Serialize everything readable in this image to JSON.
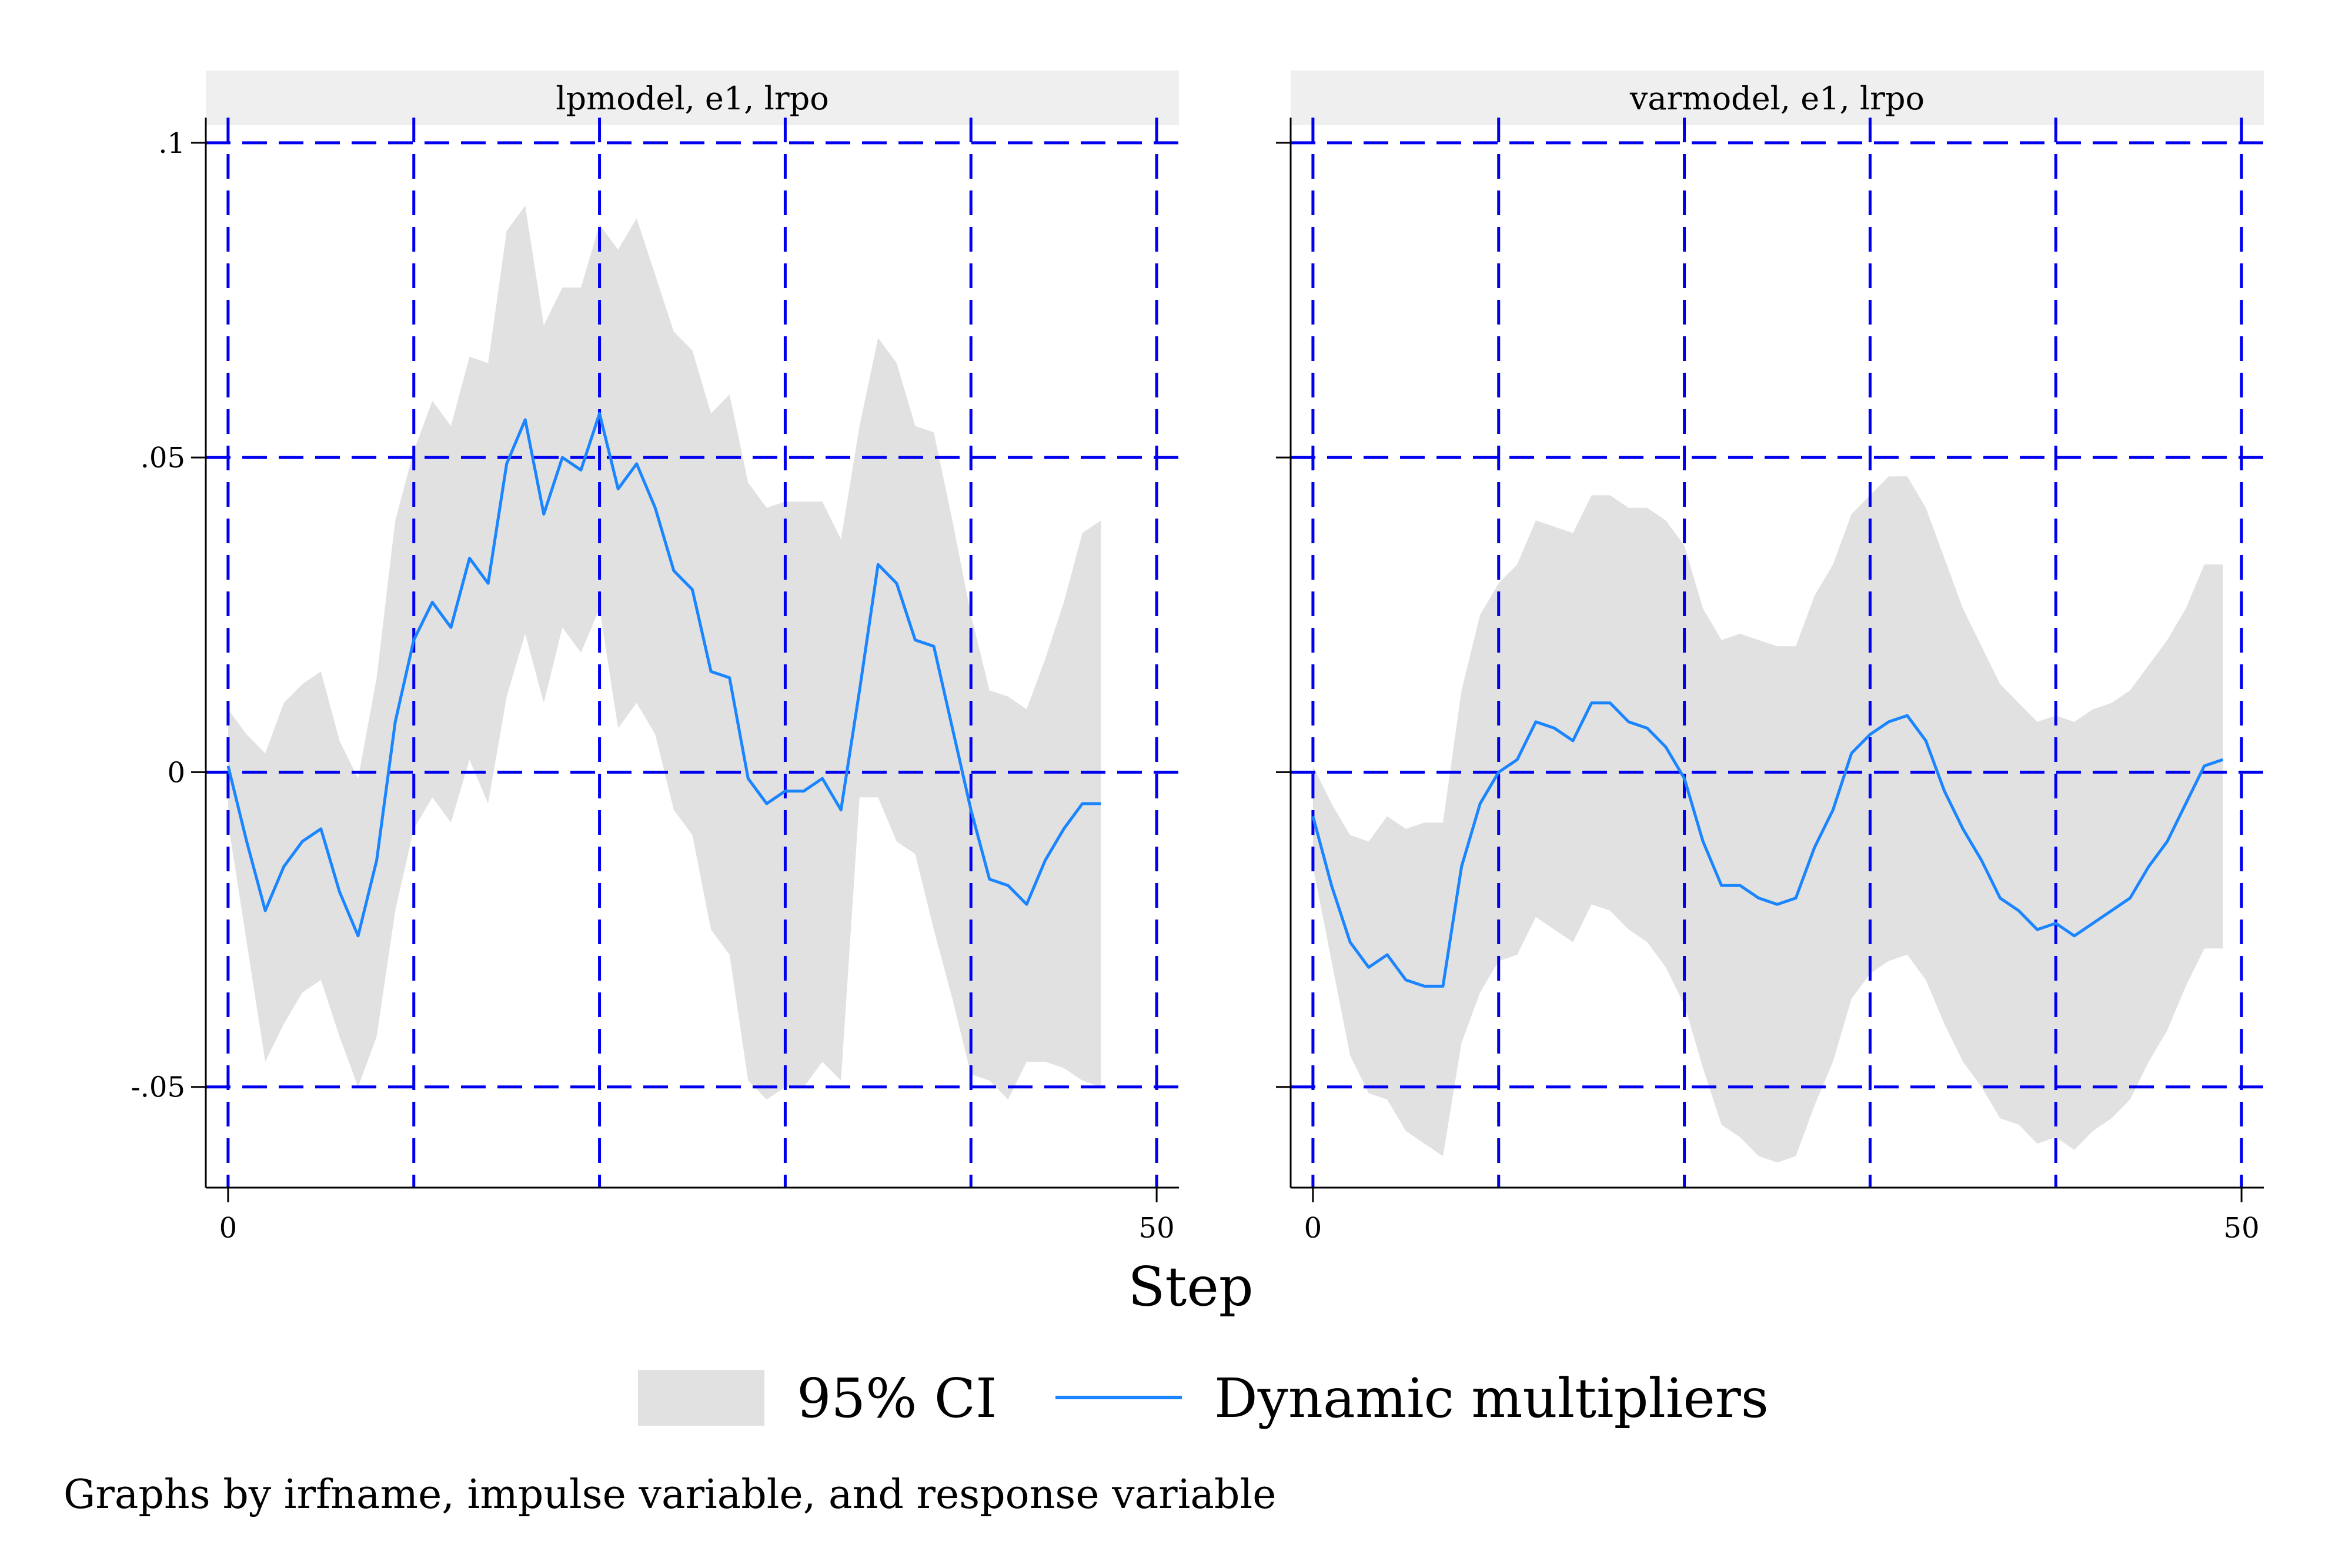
{
  "chart_data": {
    "type": "line",
    "xlabel": "Step",
    "ylabel": "",
    "note": "Graphs by irfname, impulse variable, and response variable",
    "xlim": [
      -1.2,
      51.2
    ],
    "ylim": [
      -0.066,
      0.104
    ],
    "x_ticks": [
      {
        "value": 0,
        "label": "0"
      },
      {
        "value": 50,
        "label": "50"
      }
    ],
    "y_ticks": [
      {
        "value": -0.05,
        "label": "-.05"
      },
      {
        "value": 0,
        "label": "0"
      },
      {
        "value": 0.05,
        "label": ".05"
      },
      {
        "value": 0.1,
        "label": ".1"
      }
    ],
    "x_grid": [
      0,
      10,
      20,
      30,
      40,
      50
    ],
    "y_grid": [
      -0.05,
      0,
      0.05,
      0.1
    ],
    "grid": true,
    "grid_color": "#0000ee",
    "line_color": "#1a85ff",
    "band_color": "#e1e1e1",
    "header_color": "#efefef",
    "legend": {
      "position": "bottom",
      "items": [
        {
          "label": "95% CI",
          "kind": "band"
        },
        {
          "label": "Dynamic multipliers",
          "kind": "line"
        }
      ]
    },
    "panels": [
      {
        "title": "lpmodel, e1, lrpo",
        "series": [
          {
            "name": "Dynamic multipliers",
            "x": [
              0,
              1,
              2,
              3,
              4,
              5,
              6,
              7,
              8,
              9,
              10,
              11,
              12,
              13,
              14,
              15,
              16,
              17,
              18,
              19,
              20,
              21,
              22,
              23,
              24,
              25,
              26,
              27,
              28,
              29,
              30,
              31,
              32,
              33,
              34,
              35,
              36,
              37,
              38,
              39,
              40,
              41,
              42,
              43,
              44,
              45,
              46,
              47
            ],
            "y": [
              0.001,
              -0.011,
              -0.022,
              -0.015,
              -0.011,
              -0.009,
              -0.019,
              -0.026,
              -0.014,
              0.008,
              0.021,
              0.027,
              0.023,
              0.034,
              0.03,
              0.049,
              0.056,
              0.041,
              0.05,
              0.048,
              0.057,
              0.045,
              0.049,
              0.042,
              0.032,
              0.029,
              0.016,
              0.015,
              -0.001,
              -0.005,
              -0.003,
              -0.003,
              -0.001,
              -0.006,
              0.013,
              0.033,
              0.03,
              0.021,
              0.02,
              0.007,
              -0.006,
              -0.017,
              -0.018,
              -0.021,
              -0.014,
              -0.009,
              -0.005,
              -0.005
            ]
          },
          {
            "name": "95% CI",
            "x": [
              0,
              1,
              2,
              3,
              4,
              5,
              6,
              7,
              8,
              9,
              10,
              11,
              12,
              13,
              14,
              15,
              16,
              17,
              18,
              19,
              20,
              21,
              22,
              23,
              24,
              25,
              26,
              27,
              28,
              29,
              30,
              31,
              32,
              33,
              34,
              35,
              36,
              37,
              38,
              39,
              40,
              41,
              42,
              43,
              44,
              45,
              46,
              47
            ],
            "upper": [
              0.01,
              0.006,
              0.003,
              0.011,
              0.014,
              0.016,
              0.005,
              -0.001,
              0.015,
              0.04,
              0.051,
              0.059,
              0.055,
              0.066,
              0.065,
              0.086,
              0.09,
              0.071,
              0.077,
              0.077,
              0.087,
              0.083,
              0.088,
              0.079,
              0.07,
              0.067,
              0.057,
              0.06,
              0.046,
              0.042,
              0.043,
              0.043,
              0.043,
              0.037,
              0.055,
              0.069,
              0.065,
              0.055,
              0.054,
              0.04,
              0.025,
              0.013,
              0.012,
              0.01,
              0.018,
              0.027,
              0.038,
              0.04
            ],
            "lower": [
              -0.008,
              -0.027,
              -0.046,
              -0.04,
              -0.035,
              -0.033,
              -0.042,
              -0.05,
              -0.042,
              -0.022,
              -0.009,
              -0.004,
              -0.008,
              0.002,
              -0.005,
              0.012,
              0.022,
              0.011,
              0.023,
              0.019,
              0.026,
              0.007,
              0.011,
              0.006,
              -0.006,
              -0.01,
              -0.025,
              -0.029,
              -0.049,
              -0.052,
              -0.05,
              -0.05,
              -0.046,
              -0.049,
              -0.004,
              -0.004,
              -0.011,
              -0.013,
              -0.025,
              -0.036,
              -0.048,
              -0.049,
              -0.052,
              -0.046,
              -0.046,
              -0.047,
              -0.049,
              -0.05
            ]
          }
        ]
      },
      {
        "title": "varmodel, e1, lrpo",
        "series": [
          {
            "name": "Dynamic multipliers",
            "x": [
              0,
              1,
              2,
              3,
              4,
              5,
              6,
              7,
              8,
              9,
              10,
              11,
              12,
              13,
              14,
              15,
              16,
              17,
              18,
              19,
              20,
              21,
              22,
              23,
              24,
              25,
              26,
              27,
              28,
              29,
              30,
              31,
              32,
              33,
              34,
              35,
              36,
              37,
              38,
              39,
              40,
              41,
              42,
              43,
              44,
              45,
              46,
              47,
              48,
              49
            ],
            "y": [
              -0.007,
              -0.018,
              -0.027,
              -0.031,
              -0.029,
              -0.033,
              -0.034,
              -0.034,
              -0.015,
              -0.005,
              0.0,
              0.002,
              0.008,
              0.007,
              0.005,
              0.011,
              0.011,
              0.008,
              0.007,
              0.004,
              -0.001,
              -0.011,
              -0.018,
              -0.018,
              -0.02,
              -0.021,
              -0.02,
              -0.012,
              -0.006,
              0.003,
              0.006,
              0.008,
              0.009,
              0.005,
              -0.003,
              -0.009,
              -0.014,
              -0.02,
              -0.022,
              -0.025,
              -0.024,
              -0.026,
              -0.024,
              -0.022,
              -0.02,
              -0.015,
              -0.011,
              -0.005,
              0.001,
              0.002
            ]
          },
          {
            "name": "95% CI",
            "x": [
              0,
              1,
              2,
              3,
              4,
              5,
              6,
              7,
              8,
              9,
              10,
              11,
              12,
              13,
              14,
              15,
              16,
              17,
              18,
              19,
              20,
              21,
              22,
              23,
              24,
              25,
              26,
              27,
              28,
              29,
              30,
              31,
              32,
              33,
              34,
              35,
              36,
              37,
              38,
              39,
              40,
              41,
              42,
              43,
              44,
              45,
              46,
              47,
              48,
              49
            ],
            "upper": [
              0.001,
              -0.005,
              -0.01,
              -0.011,
              -0.007,
              -0.009,
              -0.008,
              -0.008,
              0.013,
              0.025,
              0.03,
              0.033,
              0.04,
              0.039,
              0.038,
              0.044,
              0.044,
              0.042,
              0.042,
              0.04,
              0.036,
              0.026,
              0.021,
              0.022,
              0.021,
              0.02,
              0.02,
              0.028,
              0.033,
              0.041,
              0.044,
              0.047,
              0.047,
              0.042,
              0.034,
              0.026,
              0.02,
              0.014,
              0.011,
              0.008,
              0.009,
              0.008,
              0.01,
              0.011,
              0.013,
              0.017,
              0.021,
              0.026,
              0.033,
              0.033
            ],
            "lower": [
              -0.015,
              -0.03,
              -0.045,
              -0.051,
              -0.052,
              -0.057,
              -0.059,
              -0.061,
              -0.043,
              -0.035,
              -0.03,
              -0.029,
              -0.023,
              -0.025,
              -0.027,
              -0.021,
              -0.022,
              -0.025,
              -0.027,
              -0.031,
              -0.037,
              -0.047,
              -0.056,
              -0.058,
              -0.061,
              -0.062,
              -0.061,
              -0.053,
              -0.046,
              -0.036,
              -0.032,
              -0.03,
              -0.029,
              -0.033,
              -0.04,
              -0.046,
              -0.05,
              -0.055,
              -0.056,
              -0.059,
              -0.058,
              -0.06,
              -0.057,
              -0.055,
              -0.052,
              -0.046,
              -0.041,
              -0.034,
              -0.028,
              -0.028
            ]
          }
        ]
      }
    ]
  }
}
